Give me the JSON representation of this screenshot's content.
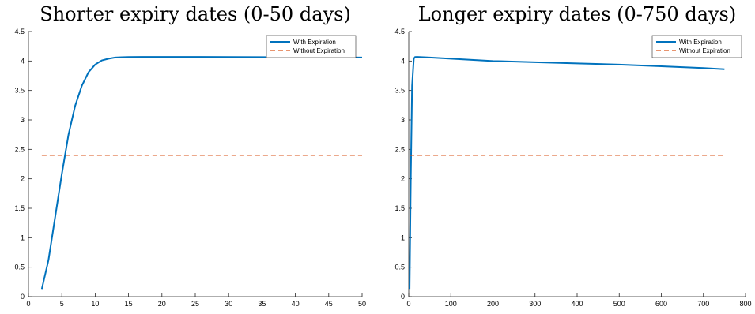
{
  "colors": {
    "with_expiration": "#0072BD",
    "without_expiration": "#D95319",
    "axes": "#262626"
  },
  "chart_data": [
    {
      "type": "line",
      "title": "Shorter expiry dates (0-50 days)",
      "xlabel": "",
      "ylabel": "",
      "xlim": [
        0,
        50
      ],
      "ylim": [
        0,
        4.5
      ],
      "xticks": [
        0,
        5,
        10,
        15,
        20,
        25,
        30,
        35,
        40,
        45,
        50
      ],
      "yticks": [
        0,
        0.5,
        1,
        1.5,
        2,
        2.5,
        3,
        3.5,
        4,
        4.5
      ],
      "xticklabels": [
        "0",
        "5",
        "10",
        "15",
        "20",
        "25",
        "30",
        "35",
        "40",
        "45",
        "50"
      ],
      "yticklabels": [
        "0",
        "0.5",
        "1",
        "1.5",
        "2",
        "2.5",
        "3",
        "3.5",
        "4",
        "4.5"
      ],
      "grid": false,
      "legend_position": "top-right",
      "series": [
        {
          "name": "With Expiration",
          "style": "solid",
          "x": [
            2,
            3,
            4,
            5,
            6,
            7,
            8,
            9,
            10,
            11,
            12,
            13,
            14,
            15,
            17,
            20,
            25,
            30,
            35,
            40,
            45,
            50
          ],
          "y": [
            0.13,
            0.62,
            1.35,
            2.08,
            2.75,
            3.24,
            3.58,
            3.81,
            3.94,
            4.01,
            4.04,
            4.06,
            4.065,
            4.068,
            4.07,
            4.07,
            4.07,
            4.068,
            4.067,
            4.065,
            4.063,
            4.06
          ]
        },
        {
          "name": "Without Expiration",
          "style": "dashed",
          "x": [
            2,
            50
          ],
          "y": [
            2.4,
            2.4
          ]
        }
      ]
    },
    {
      "type": "line",
      "title": "Longer expiry dates (0-750 days)",
      "xlabel": "",
      "ylabel": "",
      "xlim": [
        0,
        800
      ],
      "ylim": [
        0,
        4.5
      ],
      "xticks": [
        0,
        100,
        200,
        300,
        400,
        500,
        600,
        700,
        800
      ],
      "yticks": [
        0,
        0.5,
        1,
        1.5,
        2,
        2.5,
        3,
        3.5,
        4,
        4.5
      ],
      "xticklabels": [
        "0",
        "100",
        "200",
        "300",
        "400",
        "500",
        "600",
        "700",
        "800"
      ],
      "yticklabels": [
        "0",
        "0.5",
        "1",
        "1.5",
        "2",
        "2.5",
        "3",
        "3.5",
        "4",
        "4.5"
      ],
      "grid": false,
      "legend_position": "top-right",
      "series": [
        {
          "name": "With Expiration",
          "style": "solid",
          "x": [
            2,
            5,
            8,
            12,
            15,
            20,
            50,
            100,
            200,
            300,
            400,
            500,
            600,
            700,
            750
          ],
          "y": [
            0.13,
            2.08,
            3.58,
            4.04,
            4.068,
            4.07,
            4.06,
            4.04,
            4.0,
            3.98,
            3.96,
            3.94,
            3.91,
            3.88,
            3.86
          ]
        },
        {
          "name": "Without Expiration",
          "style": "dashed",
          "x": [
            2,
            750
          ],
          "y": [
            2.4,
            2.4
          ]
        }
      ]
    }
  ]
}
